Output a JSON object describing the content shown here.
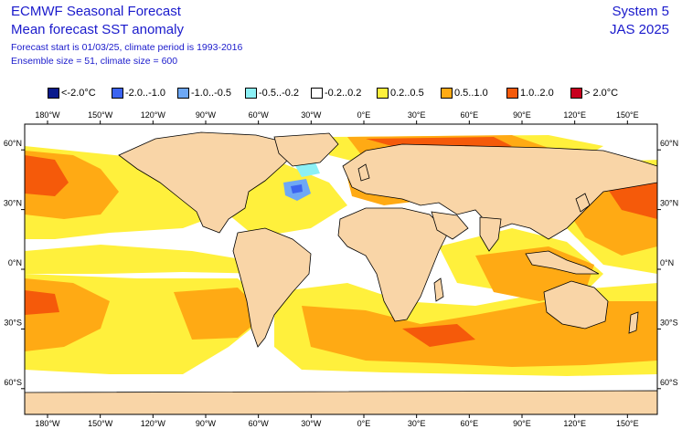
{
  "header": {
    "title": "ECMWF Seasonal Forecast",
    "subtitle": "Mean forecast SST anomaly",
    "forecast_start": "Forecast start is 01/03/25, climate period is 1993-2016",
    "ensemble": "Ensemble size = 51, climate size = 600",
    "system": "System 5",
    "season": "JAS 2025"
  },
  "legend": [
    {
      "label": "<-2.0°C",
      "color": "#0a1a8c"
    },
    {
      "label": "-2.0..-1.0",
      "color": "#3c64f0"
    },
    {
      "label": "-1.0..-0.5",
      "color": "#6ea8f5"
    },
    {
      "label": "-0.5..-0.2",
      "color": "#8cf0f5"
    },
    {
      "label": "-0.2..0.2",
      "color": "#ffffff"
    },
    {
      "label": "0.2..0.5",
      "color": "#fff03c"
    },
    {
      "label": "0.5..1.0",
      "color": "#ffaa14"
    },
    {
      "label": "1.0..2.0",
      "color": "#f55a0a"
    },
    {
      "label": "> 2.0°C",
      "color": "#c8001e"
    }
  ],
  "axes": {
    "lon_labels": [
      "180°W",
      "150°W",
      "120°W",
      "90°W",
      "60°W",
      "30°W",
      "0°E",
      "30°E",
      "60°E",
      "90°E",
      "120°E",
      "150°E"
    ],
    "lat_labels": [
      "60°N",
      "30°N",
      "0°N",
      "30°S",
      "60°S"
    ],
    "lon_values": [
      -180,
      -150,
      -120,
      -90,
      -60,
      -30,
      0,
      30,
      60,
      90,
      120,
      150
    ],
    "lat_values": [
      60,
      30,
      0,
      -30,
      -60
    ]
  },
  "colors": {
    "land": "#f9d5a7",
    "coast": "#000000",
    "frame": "#000000"
  }
}
